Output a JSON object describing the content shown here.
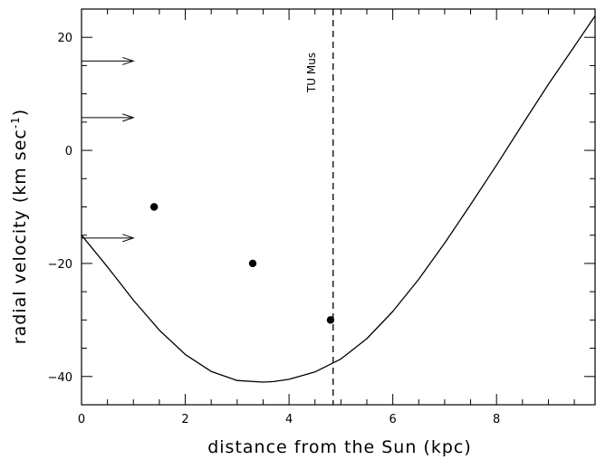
{
  "chart_data": {
    "type": "line",
    "title": "",
    "xlabel": "distance from the Sun (kpc)",
    "ylabel": "radial velocity (km sec",
    "ylabel_sup": "-1",
    "ylabel_close": ")",
    "xlim": [
      0,
      9.9
    ],
    "ylim": [
      -45,
      25
    ],
    "x_ticks": [
      0,
      2,
      4,
      6,
      8
    ],
    "x_tick_labels": [
      "0",
      "2",
      "4",
      "6",
      "8"
    ],
    "y_ticks": [
      20,
      0,
      -20,
      -40
    ],
    "y_tick_labels": [
      "20",
      "0",
      "−20",
      "−40"
    ],
    "grid": false,
    "series": [
      {
        "kind": "curve",
        "x": [
          0,
          0.5,
          1.0,
          1.5,
          2.0,
          2.5,
          3.0,
          3.5,
          3.7,
          4.0,
          4.5,
          5.0,
          5.5,
          6.0,
          6.5,
          7.0,
          7.5,
          8.0,
          8.5,
          9.0,
          9.5,
          9.9
        ],
        "y": [
          -15,
          -20.6,
          -26.5,
          -31.8,
          -36.1,
          -39.1,
          -40.7,
          -41.0,
          -40.9,
          -40.5,
          -39.2,
          -36.9,
          -33.3,
          -28.5,
          -22.8,
          -16.4,
          -9.6,
          -2.6,
          4.6,
          11.7,
          18.4,
          23.8
        ]
      },
      {
        "kind": "points",
        "x": [
          1.4,
          3.3,
          4.8
        ],
        "y": [
          -10,
          -20,
          -30
        ]
      }
    ],
    "arrows": [
      {
        "x0": 0,
        "x1": 1.0,
        "y": 15.8
      },
      {
        "x0": 0,
        "x1": 1.0,
        "y": 5.8
      },
      {
        "x0": 0,
        "x1": 1.0,
        "y": -15.5
      }
    ],
    "vline": {
      "x": 4.85,
      "label": "TU Mus"
    }
  }
}
